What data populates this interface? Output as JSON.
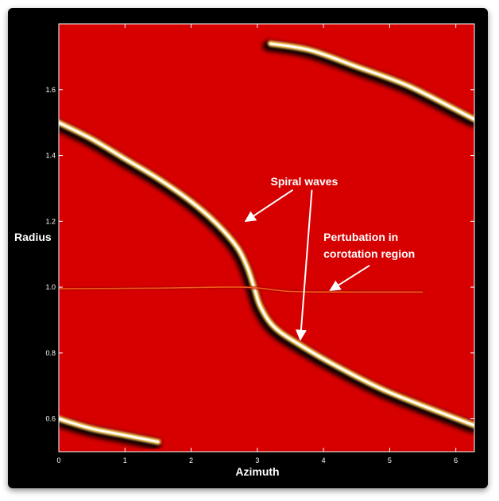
{
  "chart_data": {
    "type": "heatmap",
    "title": "",
    "xlabel": "Azimuth",
    "ylabel": "Radius",
    "xlim": [
      0,
      6.28
    ],
    "ylim": [
      0.5,
      1.8
    ],
    "x_ticks": [
      0,
      1,
      2,
      3,
      4,
      5,
      6
    ],
    "y_ticks": [
      0.6,
      0.8,
      1.0,
      1.2,
      1.4,
      1.6
    ],
    "y_tick_labels": [
      "0.6",
      "0.8",
      "1.0",
      "1.2",
      "1.4",
      "1.6"
    ],
    "grid": false,
    "colormap": [
      "#000000",
      "#c80000",
      "#ffd060",
      "#ffffff"
    ],
    "background_color": "#d70000",
    "series": [
      {
        "values": [
          [
            0,
            1.5
          ],
          [
            0.5,
            1.45
          ],
          [
            1.0,
            1.39
          ],
          [
            1.5,
            1.33
          ],
          [
            2.0,
            1.26
          ],
          [
            2.4,
            1.19
          ],
          [
            2.7,
            1.12
          ],
          [
            2.85,
            1.06
          ],
          [
            2.95,
            1.0
          ],
          [
            3.05,
            0.94
          ],
          [
            3.25,
            0.88
          ],
          [
            3.6,
            0.83
          ],
          [
            4.2,
            0.76
          ],
          [
            5.0,
            0.68
          ],
          [
            6.28,
            0.58
          ]
        ]
      },
      {
        "values": [
          [
            3.2,
            1.74
          ],
          [
            3.8,
            1.72
          ],
          [
            4.5,
            1.67
          ],
          [
            5.3,
            1.61
          ],
          [
            6.28,
            1.51
          ]
        ]
      },
      {
        "values": [
          [
            0,
            0.6
          ],
          [
            0.5,
            0.57
          ],
          [
            1.0,
            0.55
          ],
          [
            1.5,
            0.53
          ]
        ]
      },
      {
        "values": [
          [
            0,
            0.995
          ],
          [
            1.5,
            0.997
          ],
          [
            2.8,
            1.0
          ],
          [
            3.5,
            0.987
          ],
          [
            4.5,
            0.985
          ],
          [
            5.5,
            0.985
          ]
        ]
      }
    ],
    "annotations": [
      {
        "text": "Spiral waves",
        "anchor": [
          3.2,
          1.31
        ],
        "arrows_to": [
          [
            2.82,
            1.2
          ],
          [
            3.65,
            0.84
          ]
        ]
      },
      {
        "text": "Pertubation in",
        "anchor": [
          4.0,
          1.14
        ]
      },
      {
        "text": "corotation region",
        "anchor": [
          4.0,
          1.09
        ],
        "arrows_to": [
          [
            4.1,
            0.99
          ]
        ]
      }
    ]
  }
}
